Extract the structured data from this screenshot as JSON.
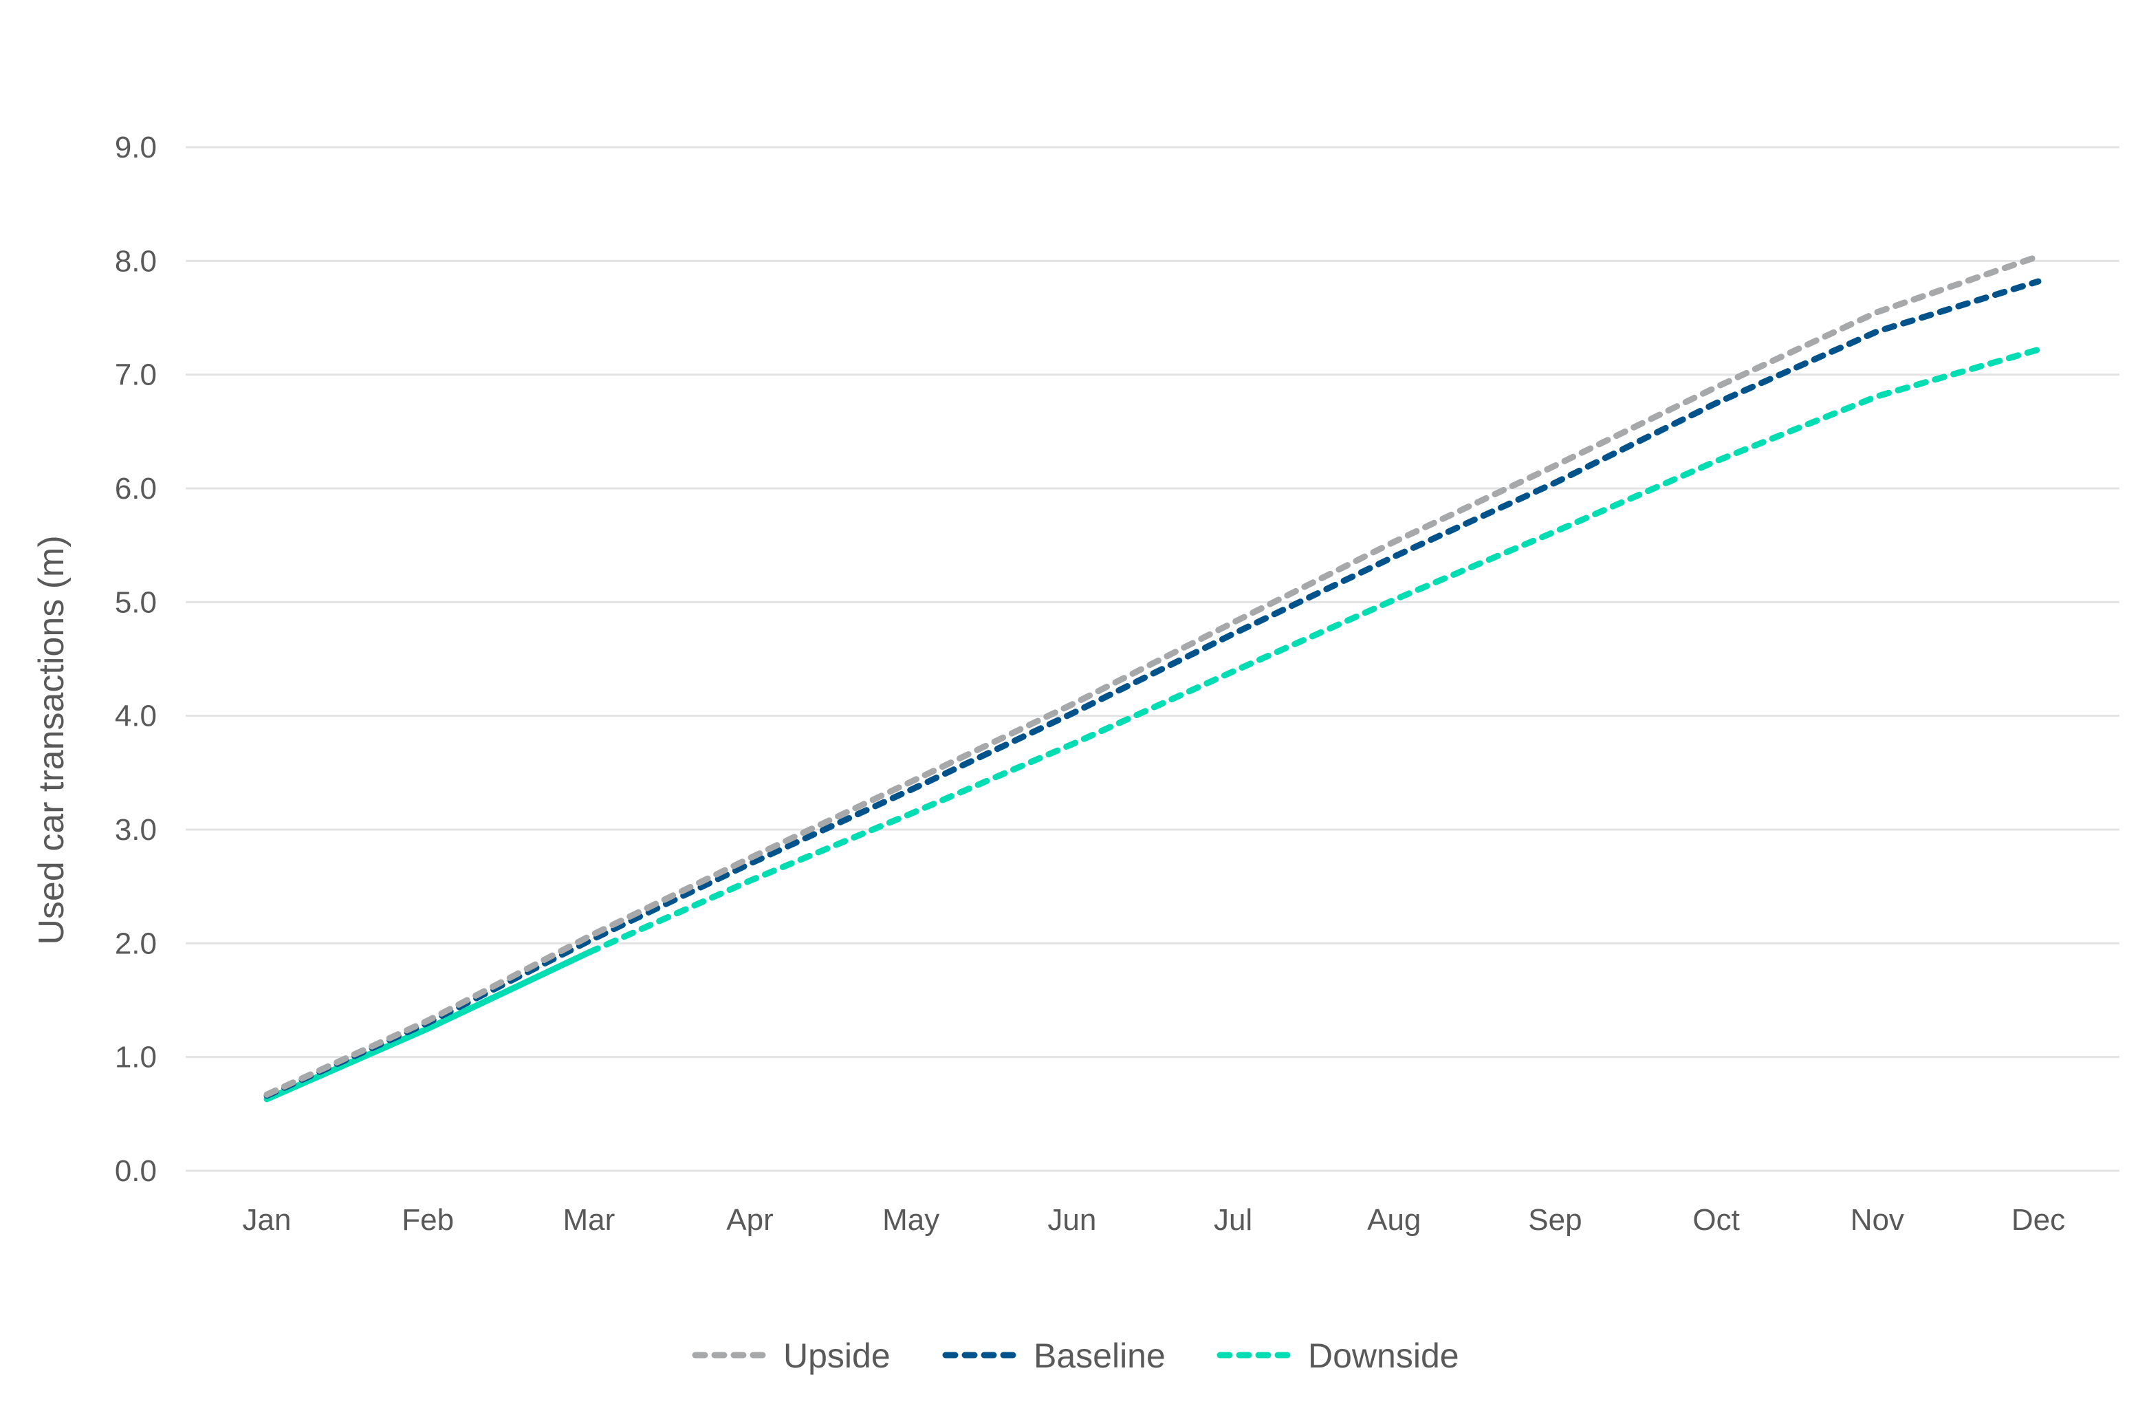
{
  "chart_data": {
    "type": "line",
    "title": "",
    "xlabel": "",
    "ylabel": "Used car transactions (m)",
    "ylim": [
      0,
      9
    ],
    "yticks": [
      "0.0",
      "1.0",
      "2.0",
      "3.0",
      "4.0",
      "5.0",
      "6.0",
      "7.0",
      "8.0",
      "9.0"
    ],
    "grid": true,
    "legend_position": "bottom",
    "categories": [
      "Jan",
      "Feb",
      "Mar",
      "Apr",
      "May",
      "Jun",
      "Jul",
      "Aug",
      "Sep",
      "Oct",
      "Nov",
      "Dec"
    ],
    "series": [
      {
        "name": "Upside",
        "color": "#A6A8AA",
        "style": "dashed",
        "values": [
          0.67,
          1.32,
          2.06,
          2.75,
          3.42,
          4.1,
          4.82,
          5.53,
          6.2,
          6.89,
          7.55,
          8.04
        ]
      },
      {
        "name": "Baseline",
        "color": "#00528A",
        "style": "dashed",
        "values": [
          0.66,
          1.3,
          2.02,
          2.7,
          3.35,
          4.02,
          4.72,
          5.4,
          6.05,
          6.75,
          7.38,
          7.82
        ]
      },
      {
        "name": "Downside",
        "color": "#00DDB3",
        "style": "dashed",
        "solid_through": "Mar",
        "values": [
          0.63,
          1.25,
          1.92,
          2.55,
          3.14,
          3.75,
          4.39,
          5.02,
          5.62,
          6.24,
          6.81,
          7.22
        ]
      }
    ]
  }
}
